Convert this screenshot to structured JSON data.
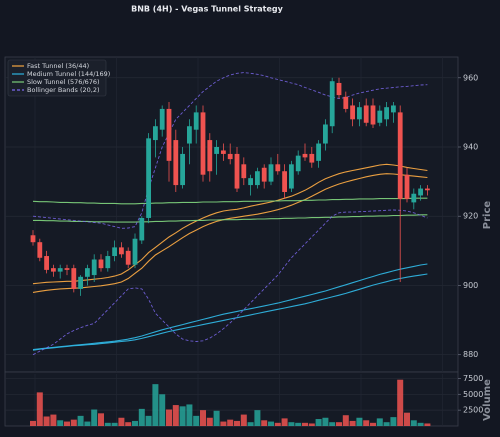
{
  "chart_data": {
    "type": "candlestick",
    "title": "BNB (4H) - Vegas Tunnel Strategy",
    "y_label": "Price",
    "volume_label": "Volume",
    "up_color": "#26a69a",
    "down_color": "#ef5350",
    "ylim": [
      875,
      966
    ],
    "yticks": [
      880,
      900,
      920,
      940,
      960
    ],
    "volume_ylim": [
      0,
      8200
    ],
    "volume_yticks": [
      2500,
      5000,
      7500
    ],
    "grid": true,
    "legend": "upper left",
    "open": [
      914.5,
      912.5,
      908.5,
      905,
      904,
      905,
      905,
      899,
      902.5,
      903,
      907.5,
      905,
      908.5,
      911,
      910,
      906,
      913,
      919.5,
      942,
      945,
      951,
      942,
      929,
      941,
      945,
      950,
      942,
      938,
      939,
      938,
      938,
      935,
      929,
      929,
      934,
      930,
      935,
      933,
      928,
      933,
      938,
      938,
      936,
      941,
      946,
      958.5,
      954.5,
      952,
      948,
      952,
      952,
      947,
      948,
      950,
      950,
      932,
      924,
      926,
      928
    ],
    "high": [
      916,
      913.5,
      910,
      906,
      906,
      906,
      906,
      903,
      906,
      909,
      909,
      910,
      913,
      912.5,
      911,
      915,
      920,
      944,
      948,
      952,
      953,
      945,
      940,
      948,
      952,
      952,
      944,
      942,
      941,
      941,
      940,
      937,
      932,
      934,
      935,
      937,
      938,
      935,
      936,
      939,
      941,
      940,
      942,
      948,
      960,
      960,
      956,
      954,
      953,
      954,
      954,
      952,
      953,
      953,
      952,
      934,
      928,
      929,
      929
    ],
    "low": [
      911.5,
      907,
      903.5,
      902.5,
      902,
      903,
      898,
      897,
      900,
      901,
      904,
      904,
      907,
      908,
      905,
      905,
      912,
      918,
      937,
      943,
      930,
      927,
      928,
      935,
      941,
      930,
      930,
      932,
      936,
      935,
      927,
      929,
      926,
      928,
      928,
      929,
      932,
      925,
      927,
      932,
      936,
      934,
      934,
      939,
      944,
      954,
      950,
      946,
      946,
      946,
      945.5,
      946,
      946,
      947,
      901,
      924,
      922,
      924.5,
      926
    ],
    "close": [
      912.5,
      908,
      904.5,
      904,
      905,
      904.5,
      899,
      902.5,
      905,
      907.5,
      905,
      908.5,
      911,
      909,
      906,
      913.5,
      919.5,
      942.5,
      946,
      951,
      936,
      929,
      938,
      946,
      950,
      932,
      933,
      940,
      938,
      936.5,
      928,
      931,
      931,
      933,
      930,
      935,
      933,
      927,
      935,
      937.5,
      937,
      935.5,
      941,
      946.5,
      959,
      955,
      951,
      948,
      951.5,
      947,
      946.5,
      950.5,
      951.5,
      952,
      925,
      925,
      926.5,
      928,
      927.5
    ],
    "volume": [
      800,
      5300,
      1500,
      1800,
      900,
      700,
      1000,
      1600,
      700,
      2600,
      2000,
      500,
      500,
      1300,
      600,
      800,
      2700,
      1600,
      6600,
      5000,
      2600,
      3300,
      3100,
      3400,
      1600,
      2500,
      1300,
      2400,
      700,
      1000,
      800,
      1800,
      600,
      2500,
      900,
      700,
      500,
      1200,
      600,
      500,
      500,
      400,
      1100,
      1300,
      600,
      600,
      1700,
      800,
      1300,
      900,
      500,
      1200,
      600,
      1400,
      7300,
      2100,
      900,
      500,
      400
    ],
    "series": [
      {
        "name": "Fast Tunnel (36/44)",
        "color": "#f5a742",
        "dash": false,
        "values": [
          900.5,
          900.7,
          900.9,
          901.0,
          901.1,
          901.2,
          901.2,
          901.4,
          901.6,
          901.8,
          902.0,
          902.3,
          902.7,
          903.3,
          904.5,
          906.0,
          907.5,
          909.5,
          911.0,
          912.5,
          914.0,
          915.2,
          916.5,
          917.6,
          918.6,
          919.5,
          920.3,
          921.0,
          921.5,
          921.8,
          922.0,
          922.4,
          922.9,
          923.3,
          923.7,
          924.1,
          924.6,
          925.2,
          925.8,
          926.6,
          927.5,
          928.6,
          929.8,
          930.8,
          931.6,
          932.3,
          932.8,
          933.2,
          933.6,
          934.0,
          934.4,
          934.8,
          935.0,
          934.8,
          934.5,
          934.1,
          933.8,
          933.5,
          933.2
        ],
        "values_lower": [
          898.0,
          898.3,
          898.6,
          898.8,
          899.0,
          899.1,
          899.2,
          899.3,
          899.5,
          899.7,
          899.9,
          900.2,
          900.5,
          901.0,
          902.0,
          903.5,
          905.0,
          907.0,
          908.8,
          910.0,
          911.2,
          912.5,
          913.8,
          915.0,
          916.0,
          917.0,
          917.8,
          918.5,
          919.0,
          919.4,
          919.7,
          920.0,
          920.3,
          920.6,
          921.0,
          921.4,
          921.9,
          922.5,
          923.2,
          924.0,
          924.8,
          925.8,
          926.8,
          927.8,
          928.6,
          929.3,
          929.9,
          930.4,
          930.9,
          931.4,
          931.8,
          932.1,
          932.3,
          932.2,
          932.0,
          931.8,
          931.6,
          931.4,
          931.2
        ]
      },
      {
        "name": "Medium Tunnel (144/169)",
        "color": "#2fb4e0",
        "dash": false,
        "values": [
          881.5,
          881.7,
          881.9,
          882.1,
          882.3,
          882.5,
          882.7,
          882.9,
          883.1,
          883.3,
          883.5,
          883.7,
          883.9,
          884.2,
          884.5,
          884.9,
          885.4,
          886.0,
          886.6,
          887.2,
          887.7,
          888.2,
          888.7,
          889.2,
          889.7,
          890.2,
          890.7,
          891.2,
          891.7,
          892.1,
          892.5,
          892.9,
          893.3,
          893.7,
          894.1,
          894.5,
          894.9,
          895.4,
          895.9,
          896.4,
          896.9,
          897.4,
          897.9,
          898.4,
          899.0,
          899.6,
          900.2,
          900.8,
          901.4,
          902.0,
          902.6,
          903.2,
          903.7,
          904.2,
          904.7,
          905.1,
          905.5,
          905.9,
          906.2
        ],
        "values_lower": [
          881.3,
          881.6,
          881.8,
          882.0,
          882.2,
          882.4,
          882.6,
          882.7,
          882.9,
          883.0,
          883.2,
          883.4,
          883.6,
          883.8,
          884.0,
          884.3,
          884.7,
          885.2,
          885.7,
          886.2,
          886.7,
          887.1,
          887.5,
          887.9,
          888.3,
          888.7,
          889.1,
          889.5,
          889.9,
          890.3,
          890.7,
          891.1,
          891.5,
          891.9,
          892.3,
          892.7,
          893.1,
          893.5,
          893.9,
          894.3,
          894.7,
          895.2,
          895.7,
          896.2,
          896.7,
          897.2,
          897.7,
          898.3,
          898.9,
          899.5,
          900.1,
          900.6,
          901.1,
          901.6,
          902.0,
          902.4,
          902.7,
          903.0,
          903.3
        ]
      },
      {
        "name": "Slow Tunnel (576/676)",
        "color": "#7ccf7a",
        "dash": false,
        "values": [
          924.3,
          924.2,
          924.2,
          924.1,
          924.0,
          924.0,
          923.9,
          923.9,
          923.8,
          923.8,
          923.7,
          923.7,
          923.7,
          923.6,
          923.6,
          923.6,
          923.7,
          923.7,
          923.8,
          923.8,
          923.9,
          923.9,
          924.0,
          924.0,
          924.0,
          924.1,
          924.1,
          924.1,
          924.2,
          924.2,
          924.2,
          924.3,
          924.3,
          924.3,
          924.4,
          924.4,
          924.4,
          924.5,
          924.5,
          924.5,
          924.6,
          924.6,
          924.7,
          924.7,
          924.8,
          924.8,
          924.9,
          924.9,
          925.0,
          925.0,
          925.0,
          925.1,
          925.1,
          925.1,
          925.1,
          925.1,
          925.2,
          925.2,
          925.2
        ],
        "values_lower": [
          918.8,
          918.8,
          918.7,
          918.7,
          918.6,
          918.6,
          918.5,
          918.5,
          918.5,
          918.4,
          918.4,
          918.4,
          918.3,
          918.3,
          918.3,
          918.3,
          918.4,
          918.4,
          918.5,
          918.5,
          918.6,
          918.6,
          918.7,
          918.7,
          918.8,
          918.8,
          918.9,
          918.9,
          919.0,
          919.0,
          919.0,
          919.1,
          919.1,
          919.2,
          919.2,
          919.3,
          919.3,
          919.4,
          919.4,
          919.5,
          919.5,
          919.6,
          919.6,
          919.7,
          919.7,
          919.8,
          919.8,
          919.9,
          919.9,
          920.0,
          920.0,
          920.1,
          920.1,
          920.2,
          920.2,
          920.3,
          920.3,
          920.4,
          920.4
        ]
      },
      {
        "name": "Bollinger Bands (20,2)",
        "color": "#7b68ee",
        "dash": true,
        "values": [
          920.0,
          919.8,
          919.6,
          919.4,
          919.2,
          919.0,
          918.8,
          918.6,
          918.4,
          918.2,
          918.0,
          917.5,
          917.0,
          916.5,
          916.6,
          917.0,
          921.0,
          928.0,
          934.0,
          940.0,
          944.0,
          948.0,
          950.0,
          952.0,
          954.0,
          956.0,
          957.5,
          959.0,
          960.0,
          960.8,
          961.3,
          961.5,
          961.3,
          961.0,
          960.6,
          960.0,
          959.5,
          959.0,
          958.5,
          958.0,
          957.2,
          956.5,
          955.8,
          955.0,
          954.5,
          954.0,
          954.3,
          955.0,
          955.6,
          956.0,
          956.4,
          956.8,
          957.0,
          957.2,
          957.4,
          957.5,
          957.7,
          957.9,
          958.0
        ],
        "values_lower": [
          880.0,
          881.0,
          882.0,
          883.0,
          884.5,
          886.0,
          887.0,
          887.8,
          888.5,
          889.0,
          891.0,
          893.0,
          895.0,
          897.0,
          899.0,
          899.3,
          899.0,
          896.0,
          892.0,
          890.0,
          888.0,
          886.0,
          884.5,
          884.0,
          883.8,
          884.0,
          884.8,
          886.0,
          887.5,
          889.2,
          891.0,
          893.0,
          895.0,
          897.0,
          899.0,
          901.0,
          903.0,
          905.5,
          908.0,
          910.0,
          912.0,
          914.0,
          916.0,
          918.0,
          920.0,
          921.0,
          921.2,
          921.2,
          921.3,
          921.4,
          921.5,
          921.6,
          921.7,
          921.8,
          921.7,
          921.5,
          921.0,
          920.3,
          919.5
        ]
      }
    ]
  }
}
